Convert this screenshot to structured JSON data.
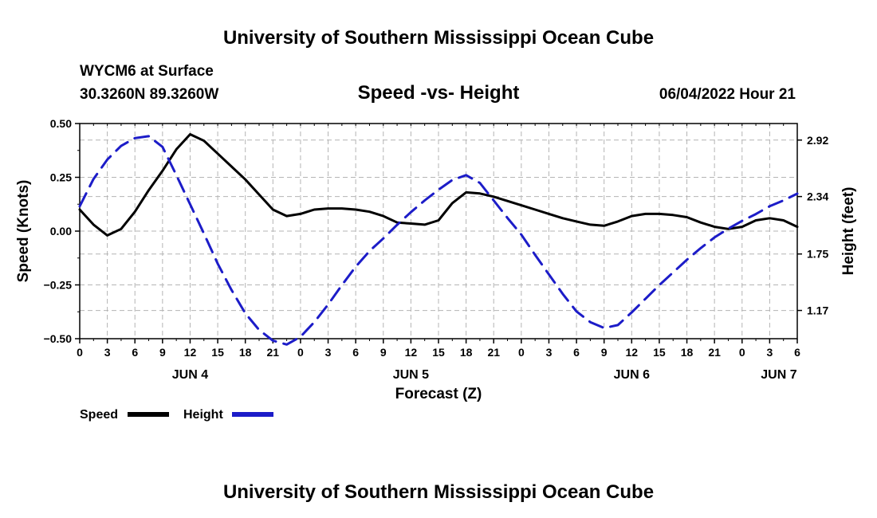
{
  "header": {
    "title": "University of Southern Mississippi Ocean Cube",
    "station": "WYCM6 at Surface",
    "coords": "30.3260N  89.3260W",
    "plot_title": "Speed -vs- Height",
    "datetime": "06/04/2022 Hour 21"
  },
  "footer": {
    "title": "University of Southern Mississippi Ocean Cube"
  },
  "colors": {
    "speed": "#000000",
    "height": "#1c1cc8",
    "grid": "#b4b4b4"
  },
  "chart_data": {
    "type": "line",
    "title": "Speed -vs- Height",
    "xlabel": "Forecast (Z)",
    "ylabel": "Speed (Knots)",
    "y2label": "Height (feet)",
    "xlim": [
      0,
      78
    ],
    "ylim": [
      -0.5,
      0.5
    ],
    "y2lim": [
      0.88,
      3.09
    ],
    "yticks": [
      0.5,
      0.25,
      0.0,
      -0.25,
      -0.5
    ],
    "ytick_labels": [
      "0.50",
      "0.25",
      "0.00",
      "−0.25",
      "−0.50"
    ],
    "y2ticks": [
      2.92,
      2.34,
      1.75,
      1.17
    ],
    "y2tick_labels": [
      "2.92",
      "2.34",
      "1.75",
      "1.17"
    ],
    "xticks": [
      0,
      3,
      6,
      9,
      12,
      15,
      18,
      21,
      24,
      27,
      30,
      33,
      36,
      39,
      42,
      45,
      48,
      51,
      54,
      57,
      60,
      63,
      66,
      69,
      72,
      75,
      78
    ],
    "xtick_labels": [
      "0",
      "3",
      "6",
      "9",
      "12",
      "15",
      "18",
      "21",
      "0",
      "3",
      "6",
      "9",
      "12",
      "15",
      "18",
      "21",
      "0",
      "3",
      "6",
      "9",
      "12",
      "15",
      "18",
      "21",
      "0",
      "3",
      "6"
    ],
    "day_labels": [
      {
        "x": 12,
        "label": "JUN 4"
      },
      {
        "x": 36,
        "label": "JUN 5"
      },
      {
        "x": 60,
        "label": "JUN 6"
      },
      {
        "x": 76,
        "label": "JUN 7"
      }
    ],
    "series": [
      {
        "name": "Speed",
        "axis": "left",
        "style": "solid",
        "x": [
          0,
          1.5,
          3,
          4.5,
          6,
          7.5,
          9,
          10.5,
          12,
          13.5,
          15,
          16.5,
          18,
          19.5,
          21,
          22.5,
          24,
          25.5,
          27,
          28.5,
          30,
          31.5,
          33,
          34.5,
          36,
          37.5,
          39,
          40.5,
          42,
          43.5,
          45,
          46.5,
          48,
          49.5,
          51,
          52.5,
          54,
          55.5,
          57,
          58.5,
          60,
          61.5,
          63,
          64.5,
          66,
          67.5,
          69,
          70.5,
          72,
          73.5,
          75,
          76.5,
          78
        ],
        "values": [
          0.1,
          0.03,
          -0.02,
          0.01,
          0.09,
          0.19,
          0.28,
          0.38,
          0.45,
          0.42,
          0.36,
          0.3,
          0.24,
          0.17,
          0.1,
          0.07,
          0.08,
          0.1,
          0.105,
          0.105,
          0.1,
          0.09,
          0.07,
          0.04,
          0.035,
          0.03,
          0.05,
          0.13,
          0.18,
          0.175,
          0.16,
          0.14,
          0.12,
          0.1,
          0.08,
          0.06,
          0.045,
          0.03,
          0.025,
          0.045,
          0.07,
          0.08,
          0.08,
          0.075,
          0.065,
          0.04,
          0.02,
          0.01,
          0.02,
          0.05,
          0.06,
          0.05,
          0.02
        ]
      },
      {
        "name": "Height",
        "axis": "right",
        "style": "dashed",
        "x": [
          0,
          1.5,
          3,
          4.5,
          6,
          7.5,
          9,
          10.5,
          12,
          13.5,
          15,
          16.5,
          18,
          19.5,
          21,
          22.5,
          24,
          25.5,
          27,
          28.5,
          30,
          31.5,
          33,
          34.5,
          36,
          37.5,
          39,
          40.5,
          42,
          43.5,
          45,
          46.5,
          48,
          49.5,
          51,
          52.5,
          54,
          55.5,
          57,
          58.5,
          60,
          61.5,
          63,
          64.5,
          66,
          67.5,
          69,
          70.5,
          72,
          73.5,
          75,
          76.5,
          78
        ],
        "values": [
          2.24,
          2.52,
          2.72,
          2.86,
          2.94,
          2.96,
          2.85,
          2.56,
          2.26,
          1.96,
          1.65,
          1.38,
          1.14,
          0.97,
          0.86,
          0.82,
          0.9,
          1.05,
          1.23,
          1.43,
          1.62,
          1.78,
          1.91,
          2.05,
          2.18,
          2.3,
          2.41,
          2.51,
          2.56,
          2.48,
          2.3,
          2.12,
          1.95,
          1.74,
          1.54,
          1.34,
          1.16,
          1.05,
          0.99,
          1.02,
          1.15,
          1.29,
          1.43,
          1.56,
          1.69,
          1.81,
          1.92,
          2.01,
          2.09,
          2.16,
          2.24,
          2.3,
          2.37
        ]
      }
    ],
    "legend": [
      {
        "label": "Speed"
      },
      {
        "label": "Height"
      }
    ]
  }
}
